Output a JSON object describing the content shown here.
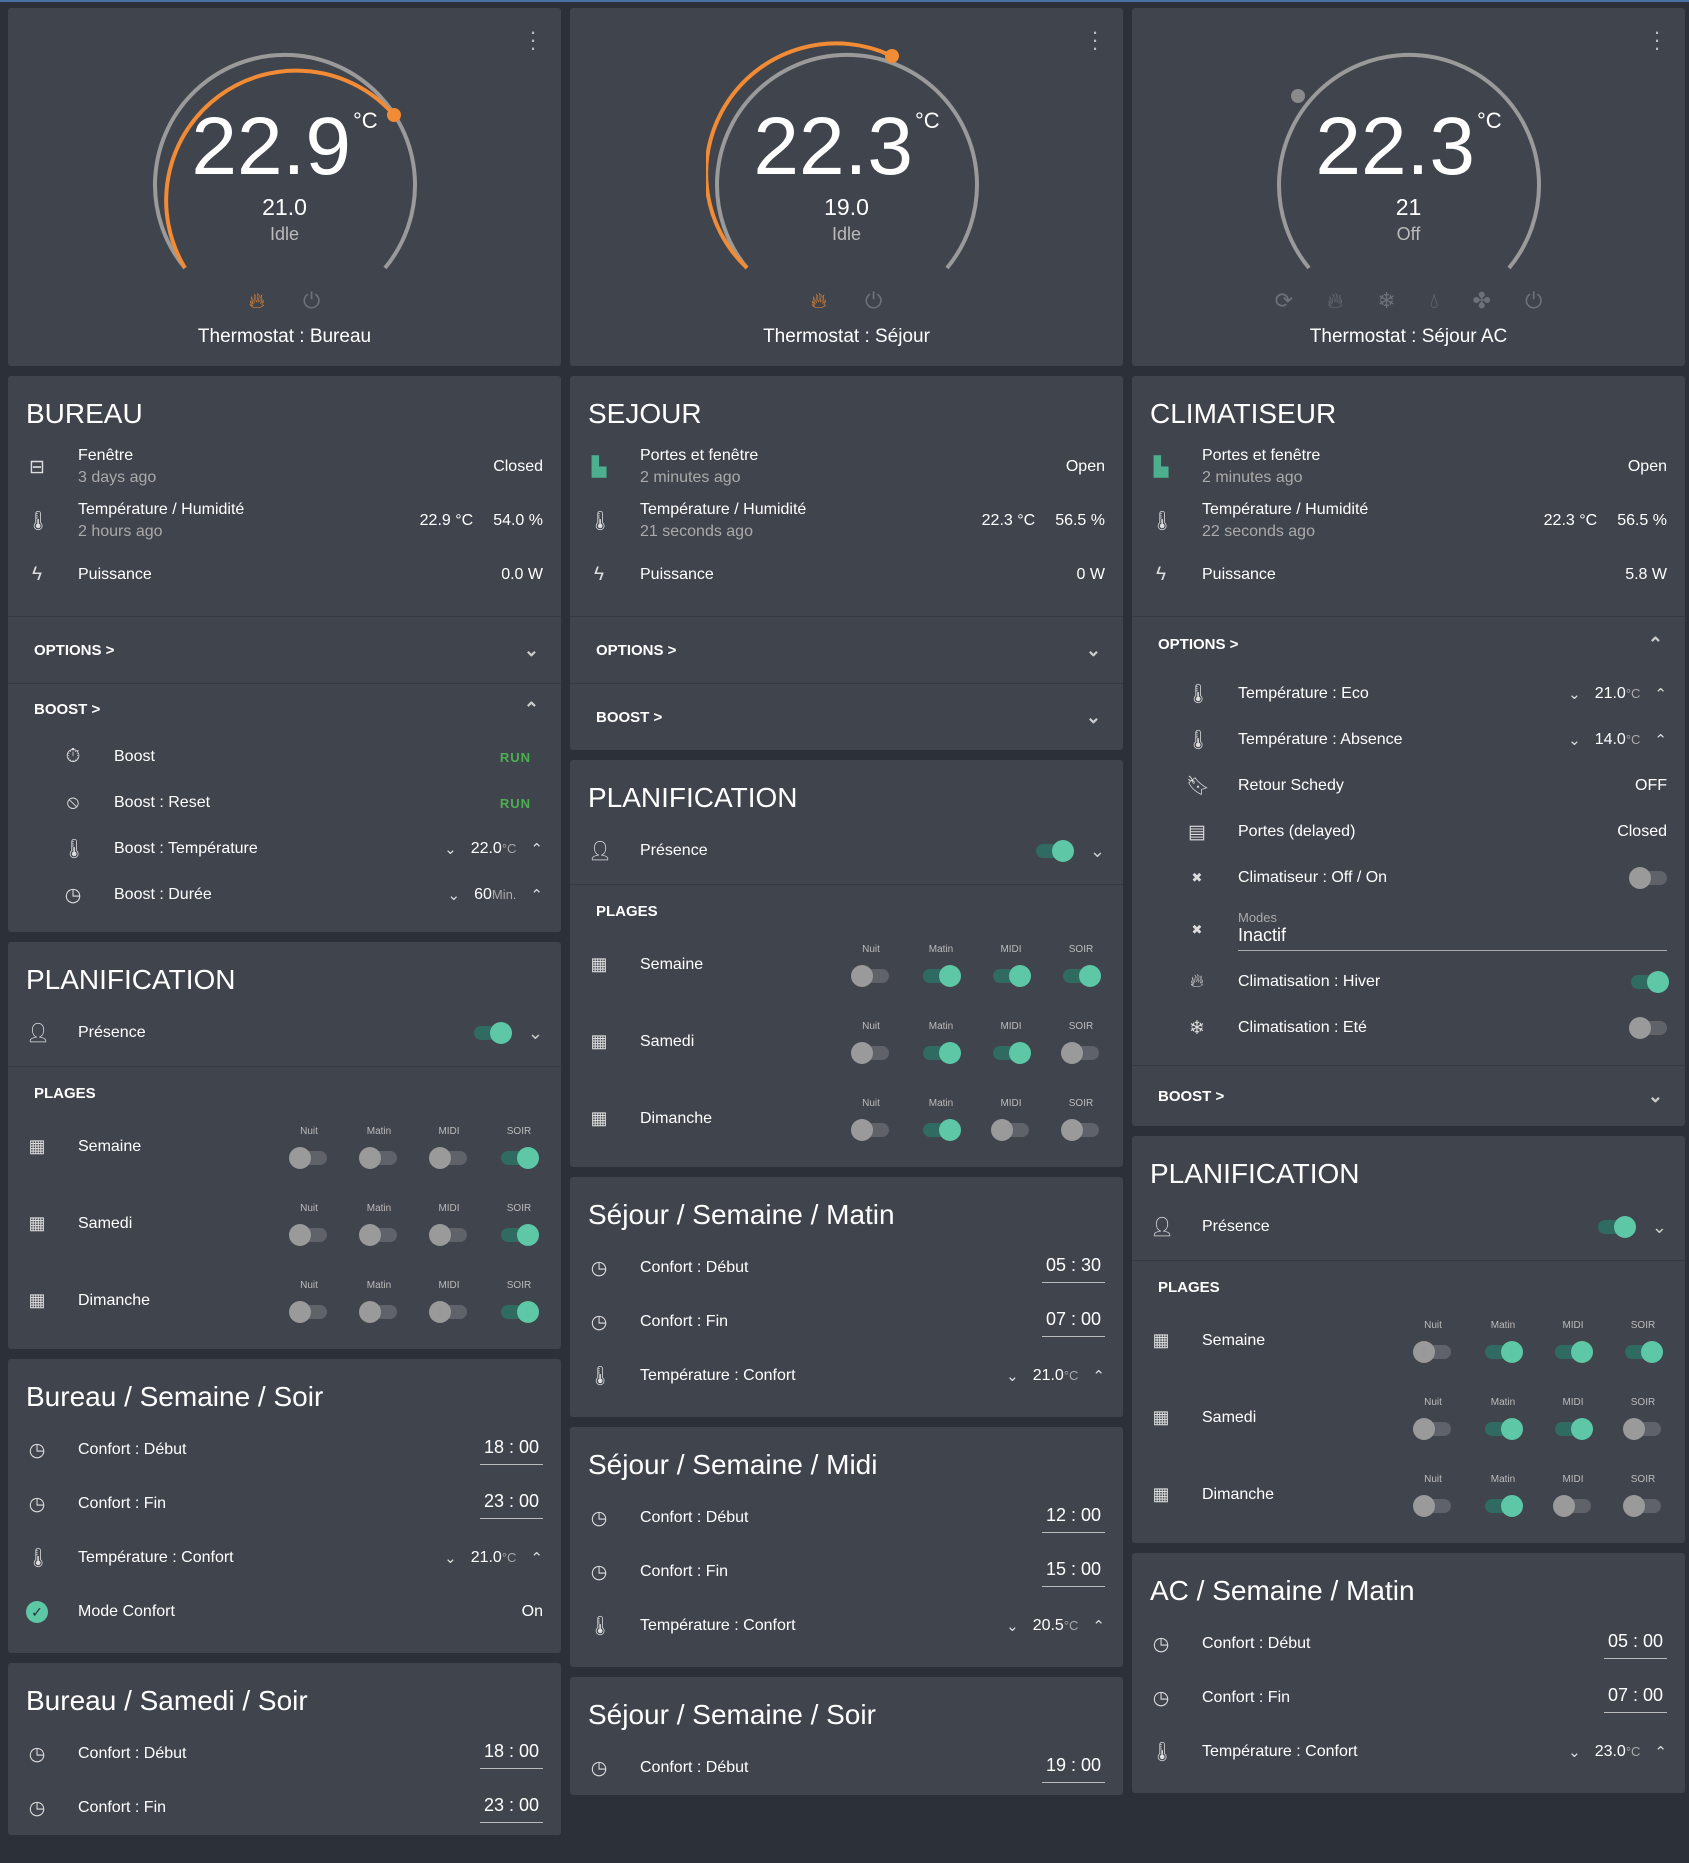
{
  "columns": [
    {
      "thermostat": {
        "temp": "22.9",
        "unit": "°C",
        "target": "21.0",
        "state": "Idle",
        "name": "Thermostat : Bureau",
        "modes": [
          {
            "icon": "flame-icon",
            "active": true
          },
          {
            "icon": "power-icon",
            "active": false
          }
        ]
      },
      "sensors": {
        "title": "BUREAU",
        "rows": [
          {
            "icon": "window-icon",
            "label": "Fenêtre",
            "sub": "3 days ago",
            "value": "Closed"
          },
          {
            "icon": "thermometer-icon",
            "label": "Température / Humidité",
            "sub": "2 hours ago",
            "value": "22.9 °C",
            "value2": "54.0 %"
          },
          {
            "icon": "bolt-icon",
            "label": "Puissance",
            "sub": "",
            "value": "0.0 W"
          }
        ],
        "options_label": "OPTIONS >",
        "boost_label": "BOOST >",
        "boost_rows": [
          {
            "label": "Boost",
            "value": "RUN"
          },
          {
            "label": "Boost : Reset",
            "value": "RUN"
          },
          {
            "label": "Boost : Température",
            "value": "22.0",
            "unit": "°C"
          },
          {
            "label": "Boost : Durée",
            "value": "60",
            "unit": "Min."
          }
        ]
      },
      "planning": {
        "title": "PLANIFICATION",
        "presence": "Présence",
        "plages": "PLAGES",
        "slots": [
          "Nuit",
          "Matin",
          "MIDI",
          "SOIR"
        ],
        "rows": [
          {
            "label": "Semaine",
            "states": [
              false,
              false,
              false,
              true
            ]
          },
          {
            "label": "Samedi",
            "states": [
              false,
              false,
              false,
              true
            ]
          },
          {
            "label": "Dimanche",
            "states": [
              false,
              false,
              false,
              true
            ]
          }
        ]
      },
      "sched1": {
        "title": "Bureau / Semaine / Soir",
        "start_label": "Confort : Début",
        "start": "18 : 00",
        "end_label": "Confort : Fin",
        "end": "23 : 00",
        "temp_label": "Température : Confort",
        "temp": "21.0",
        "unit": "°C",
        "mode_label": "Mode Confort",
        "mode": "On"
      },
      "sched2": {
        "title": "Bureau / Samedi / Soir",
        "start_label": "Confort : Début",
        "start": "18 : 00",
        "end_label": "Confort : Fin",
        "end": "23 : 00"
      }
    },
    {
      "thermostat": {
        "temp": "22.3",
        "unit": "°C",
        "target": "19.0",
        "state": "Idle",
        "name": "Thermostat : Séjour"
      },
      "sensors": {
        "title": "SEJOUR",
        "rows": [
          {
            "label": "Portes et fenêtre",
            "sub": "2 minutes ago",
            "value": "Open"
          },
          {
            "label": "Température / Humidité",
            "sub": "21 seconds ago",
            "value": "22.3 °C",
            "value2": "56.5 %"
          },
          {
            "label": "Puissance",
            "sub": "",
            "value": "0 W"
          }
        ],
        "options_label": "OPTIONS >",
        "boost_label": "BOOST >"
      },
      "planning": {
        "title": "PLANIFICATION",
        "presence": "Présence",
        "plages": "PLAGES",
        "slots": [
          "Nuit",
          "Matin",
          "MIDI",
          "SOIR"
        ],
        "rows": [
          {
            "label": "Semaine",
            "states": [
              false,
              true,
              true,
              true
            ]
          },
          {
            "label": "Samedi",
            "states": [
              false,
              true,
              true,
              false
            ]
          },
          {
            "label": "Dimanche",
            "states": [
              false,
              true,
              false,
              false
            ]
          }
        ]
      },
      "sched1": {
        "title": "Séjour / Semaine / Matin",
        "start_label": "Confort : Début",
        "start": "05 : 30",
        "end_label": "Confort : Fin",
        "end": "07 : 00",
        "temp_label": "Température : Confort",
        "temp": "21.0",
        "unit": "°C"
      },
      "sched2": {
        "title": "Séjour / Semaine / Midi",
        "start_label": "Confort : Début",
        "start": "12 : 00",
        "end_label": "Confort : Fin",
        "end": "15 : 00",
        "temp_label": "Température : Confort",
        "temp": "20.5",
        "unit": "°C"
      },
      "sched3": {
        "title": "Séjour / Semaine / Soir",
        "start_label": "Confort : Début",
        "start": "19 : 00"
      }
    },
    {
      "thermostat": {
        "temp": "22.3",
        "unit": "°C",
        "target": "21",
        "state": "Off",
        "name": "Thermostat : Séjour AC"
      },
      "sensors": {
        "title": "CLIMATISEUR",
        "rows": [
          {
            "label": "Portes et fenêtre",
            "sub": "2 minutes ago",
            "value": "Open"
          },
          {
            "label": "Température / Humidité",
            "sub": "22 seconds ago",
            "value": "22.3 °C",
            "value2": "56.5 %"
          },
          {
            "label": "Puissance",
            "sub": "",
            "value": "5.8 W"
          }
        ],
        "options_label": "OPTIONS >",
        "boost_label": "BOOST >",
        "option_rows": [
          {
            "label": "Température : Eco",
            "value": "21.0",
            "unit": "°C"
          },
          {
            "label": "Température : Absence",
            "value": "14.0",
            "unit": "°C"
          },
          {
            "label": "Retour Schedy",
            "value": "OFF"
          },
          {
            "label": "Portes (delayed)",
            "value": "Closed"
          },
          {
            "label": "Climatiseur : Off / On"
          },
          {
            "label": "Modes",
            "value": "Inactif"
          },
          {
            "label": "Climatisation : Hiver"
          },
          {
            "label": "Climatisation : Eté"
          }
        ]
      },
      "planning": {
        "title": "PLANIFICATION",
        "presence": "Présence",
        "plages": "PLAGES",
        "slots": [
          "Nuit",
          "Matin",
          "MIDI",
          "SOIR"
        ],
        "rows": [
          {
            "label": "Semaine",
            "states": [
              false,
              true,
              true,
              true
            ]
          },
          {
            "label": "Samedi",
            "states": [
              false,
              true,
              true,
              false
            ]
          },
          {
            "label": "Dimanche",
            "states": [
              false,
              true,
              false,
              false
            ]
          }
        ]
      },
      "sched1": {
        "title": "AC / Semaine / Matin",
        "start_label": "Confort : Début",
        "start": "05 : 00",
        "end_label": "Confort : Fin",
        "end": "07 : 00",
        "temp_label": "Température : Confort",
        "temp": "23.0",
        "unit": "°C"
      }
    }
  ]
}
